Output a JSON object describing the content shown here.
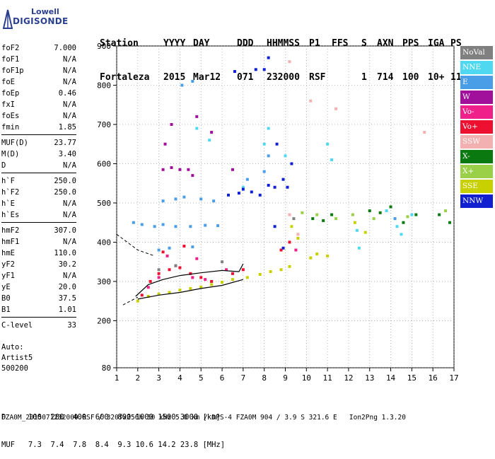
{
  "logo": {
    "lowell": "Lowell",
    "digisonde": "DIGISONDE"
  },
  "header": {
    "labels": [
      "Station",
      "YYYY",
      "DAY",
      "DDD",
      "HHMMSS",
      "P1",
      "FFS",
      "S",
      "AXN",
      "PPS",
      "IGA",
      "PS"
    ],
    "values": [
      "Fortaleza",
      "2015",
      "Mar12",
      "071",
      "232000",
      "RSF",
      "",
      "1",
      "714",
      "100",
      "10+",
      "11"
    ]
  },
  "params_groups": [
    [
      {
        "k": "foF2",
        "v": "7.000"
      },
      {
        "k": "foF1",
        "v": "N/A"
      },
      {
        "k": "foF1p",
        "v": "N/A"
      },
      {
        "k": "foE",
        "v": "N/A"
      },
      {
        "k": "foEp",
        "v": "0.46"
      },
      {
        "k": "fxI",
        "v": "N/A"
      },
      {
        "k": "foEs",
        "v": "N/A"
      },
      {
        "k": "fmin",
        "v": "1.85"
      }
    ],
    [
      {
        "k": "MUF(D)",
        "v": "23.77"
      },
      {
        "k": "M(D)",
        "v": "3.40"
      },
      {
        "k": "D",
        "v": "N/A"
      }
    ],
    [
      {
        "k": "h`F",
        "v": "250.0"
      },
      {
        "k": "h`F2",
        "v": "250.0"
      },
      {
        "k": "h`E",
        "v": "N/A"
      },
      {
        "k": "h`Es",
        "v": "N/A"
      }
    ],
    [
      {
        "k": "hmF2",
        "v": "307.0"
      },
      {
        "k": "hmF1",
        "v": "N/A"
      },
      {
        "k": "hmE",
        "v": "110.0"
      },
      {
        "k": "yF2",
        "v": "30.2"
      },
      {
        "k": "yF1",
        "v": "N/A"
      },
      {
        "k": "yE",
        "v": "20.0"
      },
      {
        "k": "B0",
        "v": "37.5"
      },
      {
        "k": "B1",
        "v": "1.01"
      }
    ],
    [
      {
        "k": "C-level",
        "v": "33"
      }
    ]
  ],
  "auto": {
    "line1": "Auto:",
    "line2": "Artist5",
    "line3": "500200"
  },
  "legend": [
    {
      "label": "NoVal",
      "color": "#808080"
    },
    {
      "label": "NNE",
      "color": "#4fd8f0"
    },
    {
      "label": "E",
      "color": "#4a9ee8"
    },
    {
      "label": "W",
      "color": "#a0109a"
    },
    {
      "label": "Vo-",
      "color": "#f0208a"
    },
    {
      "label": "Vo+",
      "color": "#ee1030"
    },
    {
      "label": "SSW",
      "color": "#f2b0b0"
    },
    {
      "label": "X-",
      "color": "#0a7a10"
    },
    {
      "label": "X+",
      "color": "#9ad048"
    },
    {
      "label": "SSE",
      "color": "#c8d000"
    },
    {
      "label": "NNW",
      "color": "#1020d0"
    }
  ],
  "bottom": {
    "d_row": "D     100  200  400  600  800 1000 1500 3000 [km]",
    "muf_row": "MUF   7.3  7.4  7.8  8.4  9.3 10.6 14.2 23.8 [MHz]"
  },
  "footer": "FZA0M_2015071232000.RSF / 320fx256h 50 kHz 5.0 km / DPS-4 FZA0M 904 / 3.9 S 321.6 E   Ion2Png 1.3.20",
  "chart_data": {
    "type": "scatter",
    "title": "",
    "xlabel": "",
    "ylabel": "",
    "xlim": [
      1,
      17
    ],
    "ylim": [
      80,
      900
    ],
    "x_ticks": [
      1,
      2,
      3,
      4,
      5,
      6,
      7,
      8,
      9,
      10,
      11,
      12,
      13,
      14,
      15,
      16,
      17
    ],
    "y_ticks": [
      80,
      200,
      300,
      400,
      500,
      600,
      700,
      800,
      900
    ],
    "grid": "dotted",
    "series": [
      {
        "name": "SSE",
        "color": "#c8d000",
        "points": [
          [
            2,
            250
          ],
          [
            2.5,
            262
          ],
          [
            3,
            268
          ],
          [
            3.5,
            272
          ],
          [
            4,
            278
          ],
          [
            4.5,
            282
          ],
          [
            5,
            286
          ],
          [
            5.5,
            292
          ],
          [
            6,
            298
          ],
          [
            6.5,
            305
          ],
          [
            7.2,
            310
          ],
          [
            7.8,
            318
          ],
          [
            8.3,
            325
          ],
          [
            8.8,
            330
          ],
          [
            9.2,
            338
          ],
          [
            10.2,
            360
          ],
          [
            10.5,
            370
          ],
          [
            11,
            365
          ],
          [
            9.3,
            440
          ],
          [
            9.6,
            410
          ],
          [
            12.3,
            450
          ],
          [
            12.8,
            425
          ]
        ]
      },
      {
        "name": "Vo+",
        "color": "#ee1030",
        "points": [
          [
            2.2,
            265
          ],
          [
            2.6,
            300
          ],
          [
            3,
            320
          ],
          [
            3.5,
            330
          ],
          [
            4,
            335
          ],
          [
            4.5,
            320
          ],
          [
            5,
            310
          ],
          [
            5.5,
            300
          ],
          [
            6.5,
            320
          ],
          [
            7,
            330
          ],
          [
            8.8,
            380
          ],
          [
            9.2,
            400
          ],
          [
            3.2,
            375
          ],
          [
            4.2,
            390
          ]
        ]
      },
      {
        "name": "Vo-",
        "color": "#f0208a",
        "points": [
          [
            2.5,
            285
          ],
          [
            3,
            310
          ],
          [
            3.8,
            340
          ],
          [
            4.6,
            310
          ],
          [
            5.2,
            305
          ],
          [
            6.2,
            330
          ],
          [
            9.5,
            380
          ],
          [
            3.4,
            365
          ],
          [
            4.8,
            358
          ]
        ]
      },
      {
        "name": "E",
        "color": "#4a9ee8",
        "points": [
          [
            1.8,
            450
          ],
          [
            2.2,
            445
          ],
          [
            2.8,
            440
          ],
          [
            3.2,
            445
          ],
          [
            3.8,
            440
          ],
          [
            4.5,
            440
          ],
          [
            5.2,
            443
          ],
          [
            5.8,
            442
          ],
          [
            3.2,
            505
          ],
          [
            3.8,
            510
          ],
          [
            4.2,
            515
          ],
          [
            5,
            510
          ],
          [
            5.6,
            505
          ],
          [
            3,
            380
          ],
          [
            3.5,
            385
          ],
          [
            4.6,
            388
          ],
          [
            4.1,
            800
          ],
          [
            4.6,
            810
          ],
          [
            8,
            580
          ],
          [
            8.2,
            620
          ],
          [
            7.2,
            560
          ],
          [
            14.2,
            460
          ]
        ]
      },
      {
        "name": "NNE",
        "color": "#4fd8f0",
        "points": [
          [
            8,
            650
          ],
          [
            8.2,
            690
          ],
          [
            9,
            620
          ],
          [
            11,
            650
          ],
          [
            11.2,
            610
          ],
          [
            12.4,
            430
          ],
          [
            12.5,
            385
          ],
          [
            13.8,
            480
          ],
          [
            14.3,
            440
          ],
          [
            14.5,
            420
          ],
          [
            15,
            470
          ],
          [
            4.8,
            690
          ],
          [
            5.4,
            660
          ],
          [
            7,
            540
          ]
        ]
      },
      {
        "name": "W",
        "color": "#a0109a",
        "points": [
          [
            3.2,
            585
          ],
          [
            3.6,
            590
          ],
          [
            4,
            585
          ],
          [
            4.4,
            585
          ],
          [
            3.3,
            650
          ],
          [
            3.6,
            700
          ],
          [
            4.8,
            720
          ],
          [
            5.5,
            680
          ],
          [
            6.5,
            585
          ],
          [
            4.6,
            570
          ]
        ]
      },
      {
        "name": "NNW",
        "color": "#1020d0",
        "points": [
          [
            6.3,
            520
          ],
          [
            6.8,
            525
          ],
          [
            7,
            535
          ],
          [
            7.4,
            528
          ],
          [
            7.8,
            520
          ],
          [
            8.2,
            545
          ],
          [
            8.5,
            540
          ],
          [
            8.9,
            560
          ],
          [
            9.1,
            540
          ],
          [
            7.6,
            840
          ],
          [
            8.2,
            870
          ],
          [
            8,
            840
          ],
          [
            6.6,
            835
          ],
          [
            8.5,
            440
          ],
          [
            8.9,
            385
          ],
          [
            9.3,
            600
          ],
          [
            8.6,
            650
          ]
        ]
      },
      {
        "name": "X-",
        "color": "#0a7a10",
        "points": [
          [
            10.3,
            460
          ],
          [
            10.8,
            455
          ],
          [
            11.2,
            470
          ],
          [
            13,
            480
          ],
          [
            13.5,
            475
          ],
          [
            14,
            490
          ],
          [
            14.6,
            450
          ],
          [
            15.2,
            470
          ],
          [
            16.3,
            470
          ],
          [
            16.8,
            450
          ]
        ]
      },
      {
        "name": "X+",
        "color": "#9ad048",
        "points": [
          [
            9.8,
            475
          ],
          [
            10.5,
            470
          ],
          [
            11.4,
            460
          ],
          [
            12.2,
            470
          ],
          [
            13.2,
            460
          ],
          [
            14.8,
            465
          ],
          [
            16.6,
            480
          ]
        ]
      },
      {
        "name": "SSW",
        "color": "#f2b0b0",
        "points": [
          [
            9.2,
            860
          ],
          [
            9.6,
            420
          ],
          [
            9.2,
            470
          ],
          [
            10.2,
            760
          ],
          [
            11.4,
            740
          ],
          [
            15.6,
            680
          ]
        ]
      },
      {
        "name": "NoVal",
        "color": "#808080",
        "points": [
          [
            3,
            330
          ],
          [
            3.8,
            340
          ],
          [
            6,
            350
          ],
          [
            9.4,
            460
          ]
        ]
      }
    ],
    "trace_dashed": [
      [
        1,
        420
      ],
      [
        2,
        380
      ],
      [
        2.8,
        365
      ],
      [
        1.3,
        240
      ],
      [
        2,
        260
      ]
    ],
    "trace_solid": [
      [
        1.9,
        262
      ],
      [
        2.5,
        292
      ],
      [
        3.2,
        305
      ],
      [
        4,
        315
      ],
      [
        5,
        322
      ],
      [
        6,
        328
      ],
      [
        6.8,
        325
      ],
      [
        7,
        345
      ]
    ],
    "trace_solid2": [
      [
        2,
        255
      ],
      [
        3,
        265
      ],
      [
        4,
        272
      ],
      [
        5,
        282
      ],
      [
        6,
        290
      ],
      [
        7,
        305
      ]
    ]
  }
}
